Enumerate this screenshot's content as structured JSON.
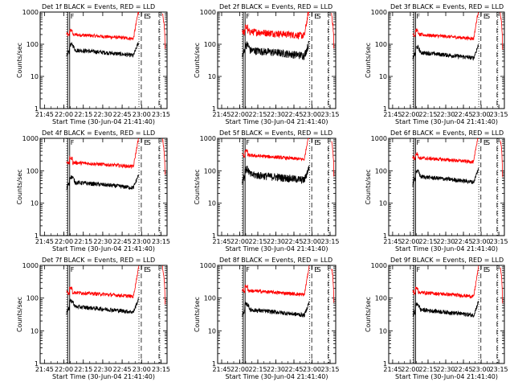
{
  "chart_data": {
    "type": "line",
    "layout": "3x3 grid of panels",
    "panels": [
      {
        "title": "Det 1f BLACK = Events, RED = LLD",
        "red_baseline": 200,
        "black_baseline": 60
      },
      {
        "title": "Det 2f BLACK = Events, RED = LLD",
        "red_baseline": 250,
        "black_baseline": 60
      },
      {
        "title": "Det 3f BLACK = Events, RED = LLD",
        "red_baseline": 200,
        "black_baseline": 50
      },
      {
        "title": "Det 4f BLACK = Events, RED = LLD",
        "red_baseline": 180,
        "black_baseline": 40
      },
      {
        "title": "Det 5f BLACK = Events, RED = LLD",
        "red_baseline": 300,
        "black_baseline": 70
      },
      {
        "title": "Det 6f BLACK = Events, RED = LLD",
        "red_baseline": 250,
        "black_baseline": 60
      },
      {
        "title": "Det 7f BLACK = Events, RED = LLD",
        "red_baseline": 150,
        "black_baseline": 50
      },
      {
        "title": "Det 8f BLACK = Events, RED = LLD",
        "red_baseline": 170,
        "black_baseline": 40
      },
      {
        "title": "Det 9f BLACK = Events, RED = LLD",
        "red_baseline": 150,
        "black_baseline": 40
      }
    ],
    "xlabel": "Start Time (30-Jun-04 21:41:40)",
    "ylabel": "Counts/sec",
    "xticks": [
      "21:45",
      "22:00",
      "22:15",
      "22:30",
      "22:45",
      "23:00",
      "23:15"
    ],
    "yticks": [
      "1",
      "10",
      "100",
      "1000"
    ],
    "yscale": "log",
    "ylim": [
      1,
      1000
    ],
    "xlim_minutes_from_start": [
      0,
      98
    ],
    "markers": {
      "dotted": [
        20.5,
        76.3,
        92.4
      ],
      "solid": [
        21.3,
        22.8
      ],
      "dashed": [
        78.1,
        91.8
      ],
      "label_F": 22.8,
      "label_E": 79.5,
      "label_S": 81.7
    },
    "series": [
      {
        "name": "Events",
        "color": "#000000"
      },
      {
        "name": "LLD",
        "color": "#ff0000"
      }
    ]
  }
}
